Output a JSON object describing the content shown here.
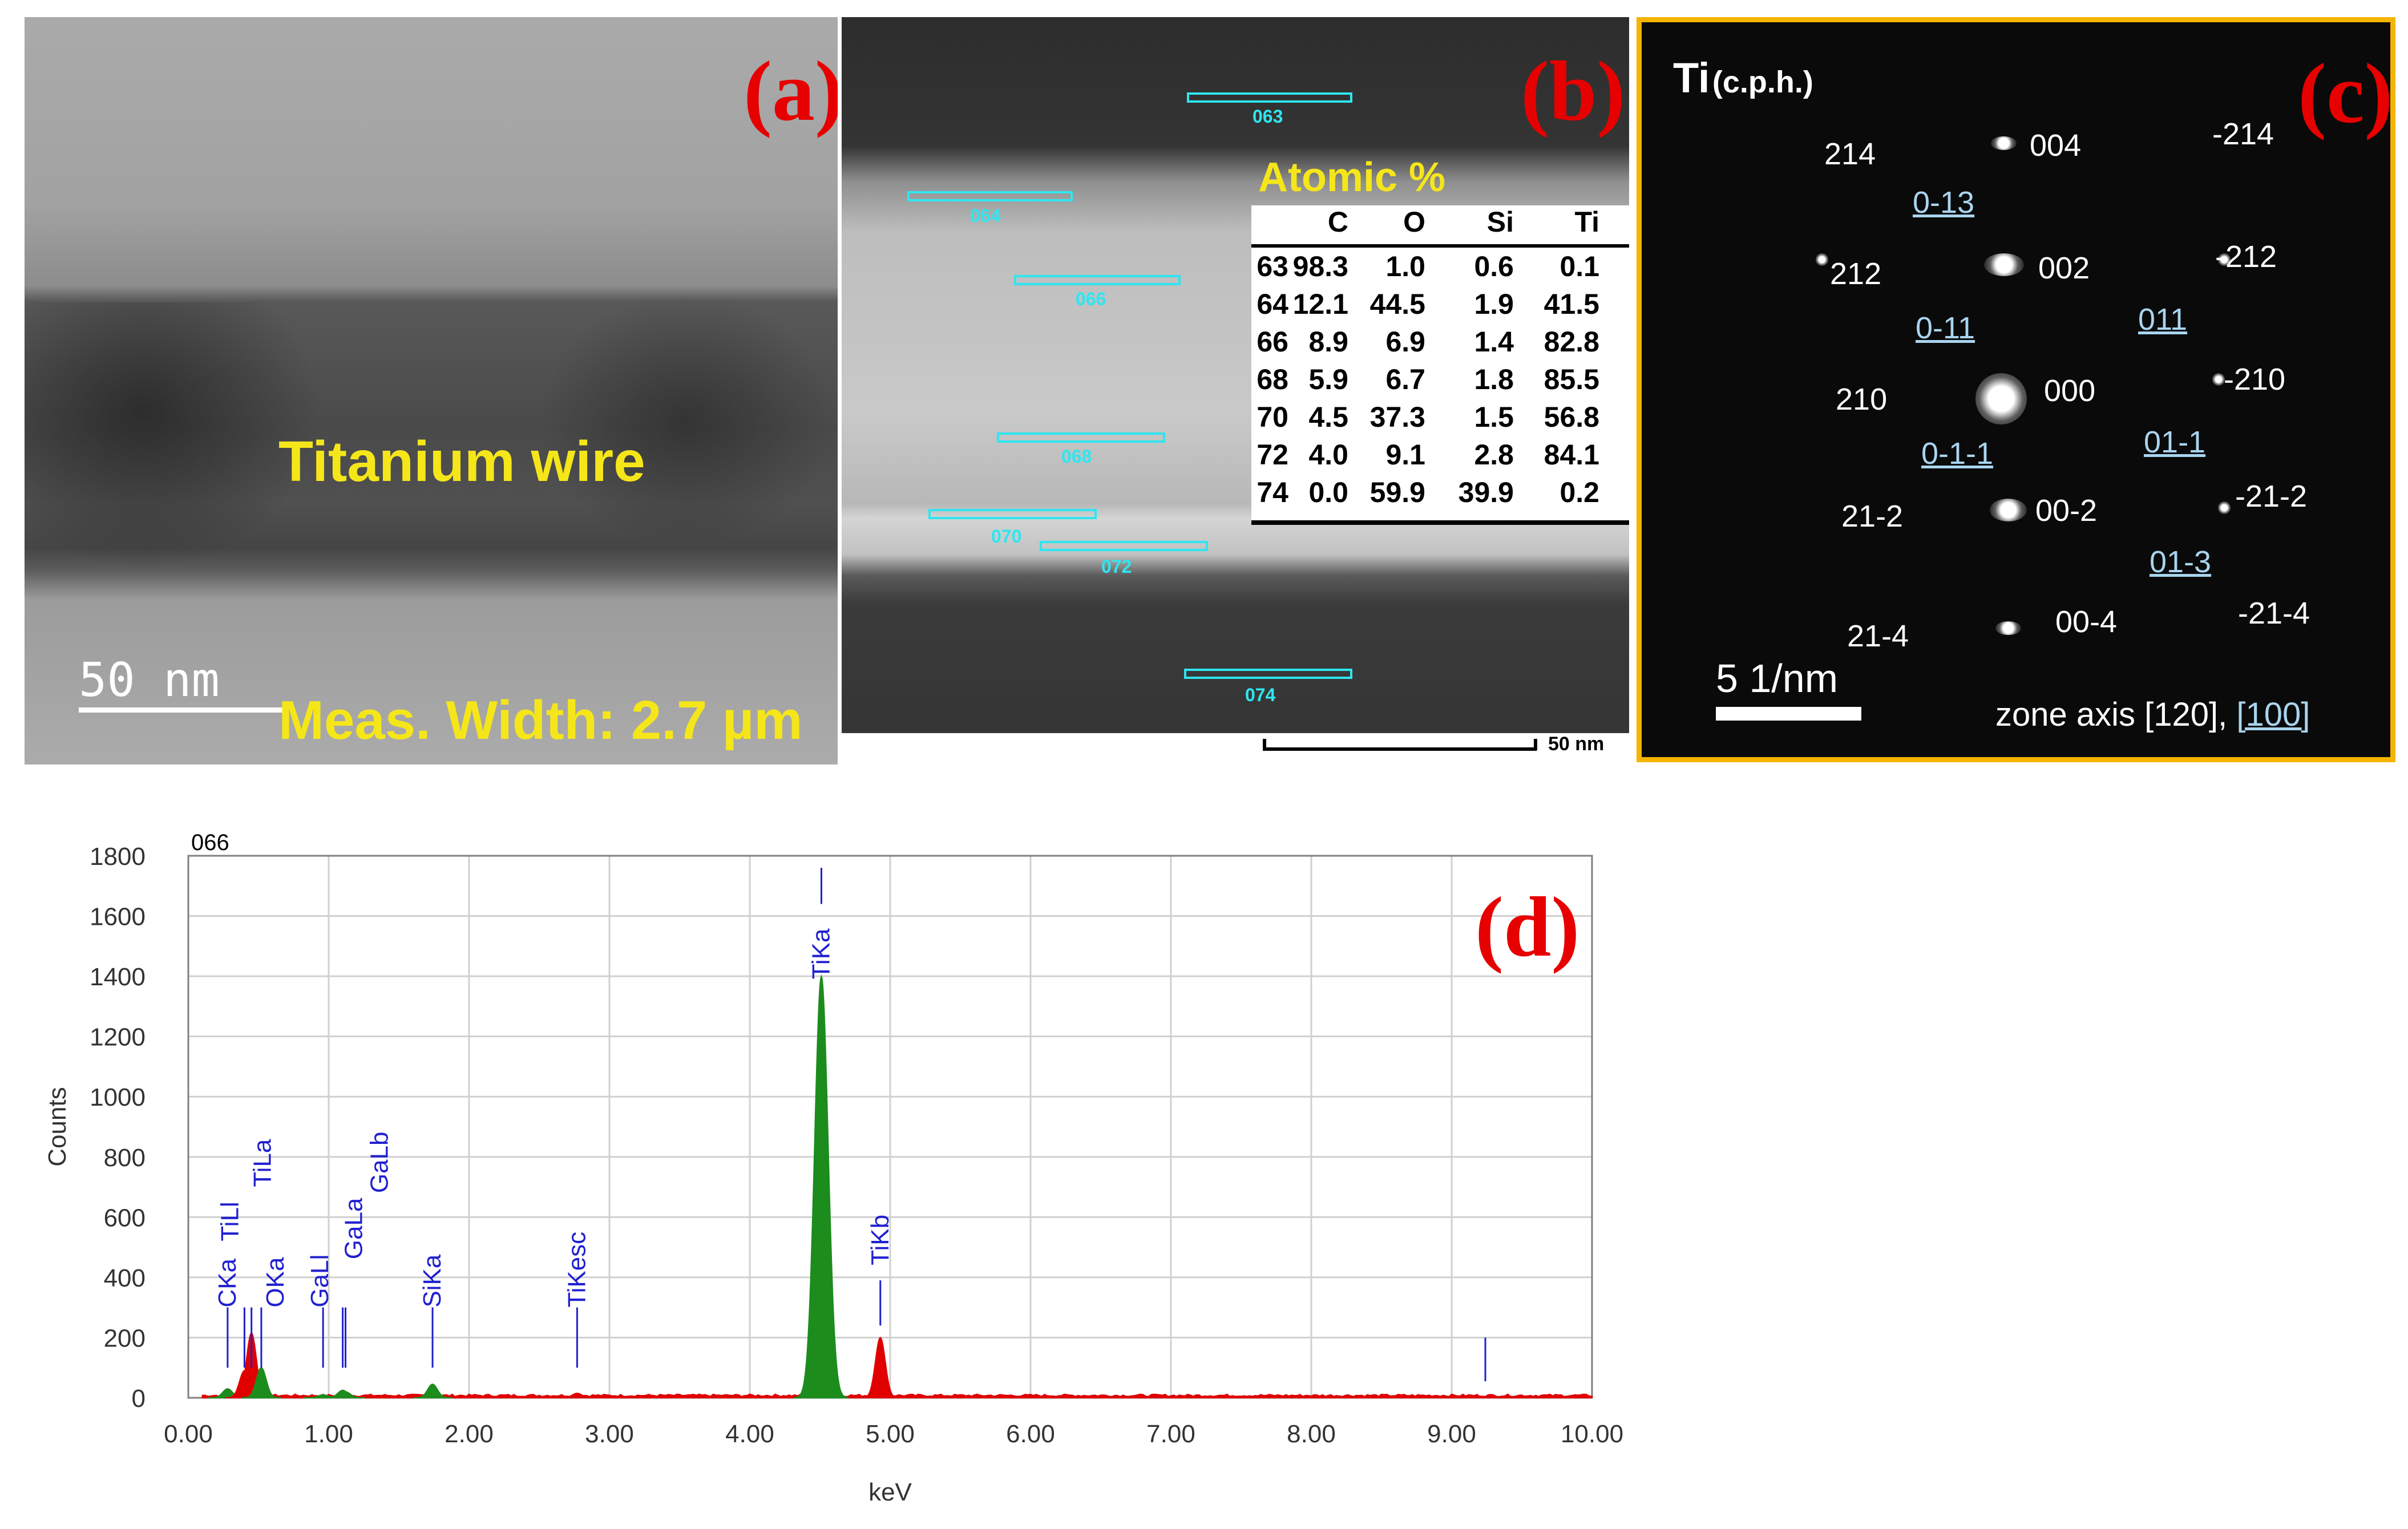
{
  "panel_a": {
    "label": "(a)",
    "wire_label": "Titanium wire",
    "scale_label": "50 nm",
    "measurement": "Meas. Width: 2.7 µm"
  },
  "panel_b": {
    "label": "(b)",
    "rois": [
      "063",
      "064",
      "066",
      "068",
      "070",
      "072",
      "074"
    ],
    "table_title": "Atomic %",
    "table_headers": [
      "",
      "C",
      "O",
      "Si",
      "Ti"
    ],
    "table_rows": [
      [
        "63",
        "98.3",
        "1.0",
        "0.6",
        "0.1"
      ],
      [
        "64",
        "12.1",
        "44.5",
        "1.9",
        "41.5"
      ],
      [
        "66",
        "8.9",
        "6.9",
        "1.4",
        "82.8"
      ],
      [
        "68",
        "5.9",
        "6.7",
        "1.8",
        "85.5"
      ],
      [
        "70",
        "4.5",
        "37.3",
        "1.5",
        "56.8"
      ],
      [
        "72",
        "4.0",
        "9.1",
        "2.8",
        "84.1"
      ],
      [
        "74",
        "0.0",
        "59.9",
        "39.9",
        "0.2"
      ]
    ],
    "scale_label": "50 nm"
  },
  "panel_c": {
    "label": "(c)",
    "title_main": "Ti",
    "title_sub": "(c.p.h.)",
    "indices": [
      "004",
      "214",
      "-214",
      "0-13",
      "002",
      "212",
      "-212",
      "0-11",
      "011",
      "000",
      "210",
      "-210",
      "0-1-1",
      "01-1",
      "00-2",
      "21-2",
      "-21-2",
      "01-3",
      "00-4",
      "21-4",
      "-21-4"
    ],
    "scale_label": "5 1/nm",
    "zone_prefix": "zone axis [120], ",
    "zone_underlined": "[100]"
  },
  "panel_d": {
    "label": "(d)"
  },
  "chart_data": {
    "type": "area",
    "title": "066",
    "xlabel": "keV",
    "ylabel": "Counts",
    "xlim": [
      0,
      10
    ],
    "ylim": [
      0,
      1800
    ],
    "x_ticks": [
      "0.00",
      "1.00",
      "2.00",
      "3.00",
      "4.00",
      "5.00",
      "6.00",
      "7.00",
      "8.00",
      "9.00",
      "10.00"
    ],
    "y_ticks": [
      "0",
      "200",
      "400",
      "600",
      "800",
      "1000",
      "1200",
      "1400",
      "1600",
      "1800"
    ],
    "grid": true,
    "series_colors": {
      "spectrum": "#e00000",
      "fitted_peaks": "#1c8c1c",
      "markers": "#2020d0"
    },
    "peaks": [
      {
        "label": "CKa",
        "energy": 0.28,
        "counts": 30,
        "color": "#1c8c1c"
      },
      {
        "label": "TiLl",
        "energy": 0.4,
        "counts": 90,
        "color": "#e00000"
      },
      {
        "label": "TiLa",
        "energy": 0.45,
        "counts": 215,
        "color": "#e00000"
      },
      {
        "label": "OKa",
        "energy": 0.52,
        "counts": 100,
        "color": "#1c8c1c"
      },
      {
        "label": "GaLl",
        "energy": 0.96,
        "counts": 10,
        "color": "#1c8c1c"
      },
      {
        "label": "GaLa",
        "energy": 1.1,
        "counts": 25,
        "color": "#1c8c1c"
      },
      {
        "label": "GaLb",
        "energy": 1.12,
        "counts": 20,
        "color": "#1c8c1c"
      },
      {
        "label": "SiKa",
        "energy": 1.74,
        "counts": 45,
        "color": "#1c8c1c"
      },
      {
        "label": "TiKesc",
        "energy": 2.77,
        "counts": 15,
        "color": "#e00000"
      },
      {
        "label": "TiKa",
        "energy": 4.51,
        "counts": 1400,
        "color": "#1c8c1c"
      },
      {
        "label": "TiKb",
        "energy": 4.93,
        "counts": 200,
        "color": "#e00000"
      }
    ],
    "markers": [
      {
        "label": "CKa",
        "energy": 0.28
      },
      {
        "label": "TiLl",
        "energy": 0.4
      },
      {
        "label": "TiLa",
        "energy": 0.45
      },
      {
        "label": "OKa",
        "energy": 0.52
      },
      {
        "label": "GaLl",
        "energy": 0.96
      },
      {
        "label": "GaLa",
        "energy": 1.1
      },
      {
        "label": "GaLb",
        "energy": 1.12
      },
      {
        "label": "SiKa",
        "energy": 1.74
      },
      {
        "label": "TiKesc",
        "energy": 2.77
      },
      {
        "label": "TiKa",
        "energy": 4.51
      },
      {
        "label": "TiKb",
        "energy": 4.93
      },
      {
        "label": "",
        "energy": 9.24
      }
    ]
  }
}
